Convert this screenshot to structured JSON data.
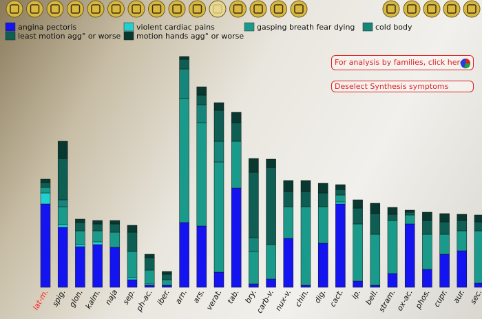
{
  "chart_data": {
    "type": "bar",
    "stacked": true,
    "selected_category": 0,
    "selected_color": "#ff2020",
    "categories": [
      "lat-m.",
      "spig.",
      "glon.",
      "kalm.",
      "naja",
      "sep.",
      "ph-ac.",
      "iber.",
      "arn.",
      "ars.",
      "verat.",
      "tab.",
      "bry.",
      "carb-v.",
      "nux-v.",
      "chin.",
      "dig.",
      "cact.",
      "ip.",
      "bell.",
      "stram.",
      "ox-ac.",
      "phos.",
      "cupr.",
      "aur.",
      "sec."
    ],
    "series": [
      {
        "name": "angina pectoris",
        "color": "#1414f0",
        "values": [
          121,
          87,
          59,
          62,
          58,
          11,
          3,
          3,
          94,
          89,
          22,
          144,
          5,
          12,
          71,
          3,
          64,
          121,
          9,
          3,
          20,
          92,
          26,
          48,
          53,
          6
        ]
      },
      {
        "name": "violent cardiac pains",
        "color": "#22d0d0",
        "values": [
          16,
          4,
          3,
          4,
          0,
          3,
          2,
          0,
          0,
          0,
          0,
          0,
          0,
          0,
          0,
          0,
          0,
          3,
          0,
          0,
          0,
          0,
          0,
          0,
          0,
          0
        ]
      },
      {
        "name": "gasping breath fear dying",
        "color": "#1a9a8a",
        "values": [
          8,
          26,
          20,
          16,
          22,
          38,
          20,
          8,
          180,
          150,
          160,
          68,
          47,
          50,
          46,
          114,
          53,
          10,
          83,
          74,
          77,
          13,
          51,
          29,
          29,
          76
        ]
      },
      {
        "name": "cold body",
        "color": "#16857a",
        "values": [
          0,
          10,
          0,
          0,
          0,
          0,
          0,
          0,
          43,
          26,
          30,
          0,
          20,
          0,
          0,
          0,
          0,
          0,
          0,
          0,
          0,
          0,
          0,
          0,
          0,
          0
        ]
      },
      {
        "name": "least motion agg° or worse",
        "color": "#0e5e54",
        "values": [
          7,
          60,
          12,
          10,
          12,
          28,
          18,
          8,
          14,
          14,
          45,
          27,
          95,
          112,
          22,
          22,
          20,
          8,
          23,
          30,
          9,
          4,
          20,
          18,
          15,
          13
        ]
      },
      {
        "name": "motion hands agg° or worse",
        "color": "#083830",
        "values": [
          5,
          25,
          5,
          5,
          5,
          10,
          5,
          4,
          4,
          12,
          11,
          15,
          20,
          12,
          16,
          16,
          14,
          7,
          12,
          15,
          10,
          3,
          12,
          12,
          9,
          10
        ]
      }
    ]
  },
  "buttons": [
    "For analysis by families, click here.",
    "Deselect Synthesis symptoms"
  ]
}
